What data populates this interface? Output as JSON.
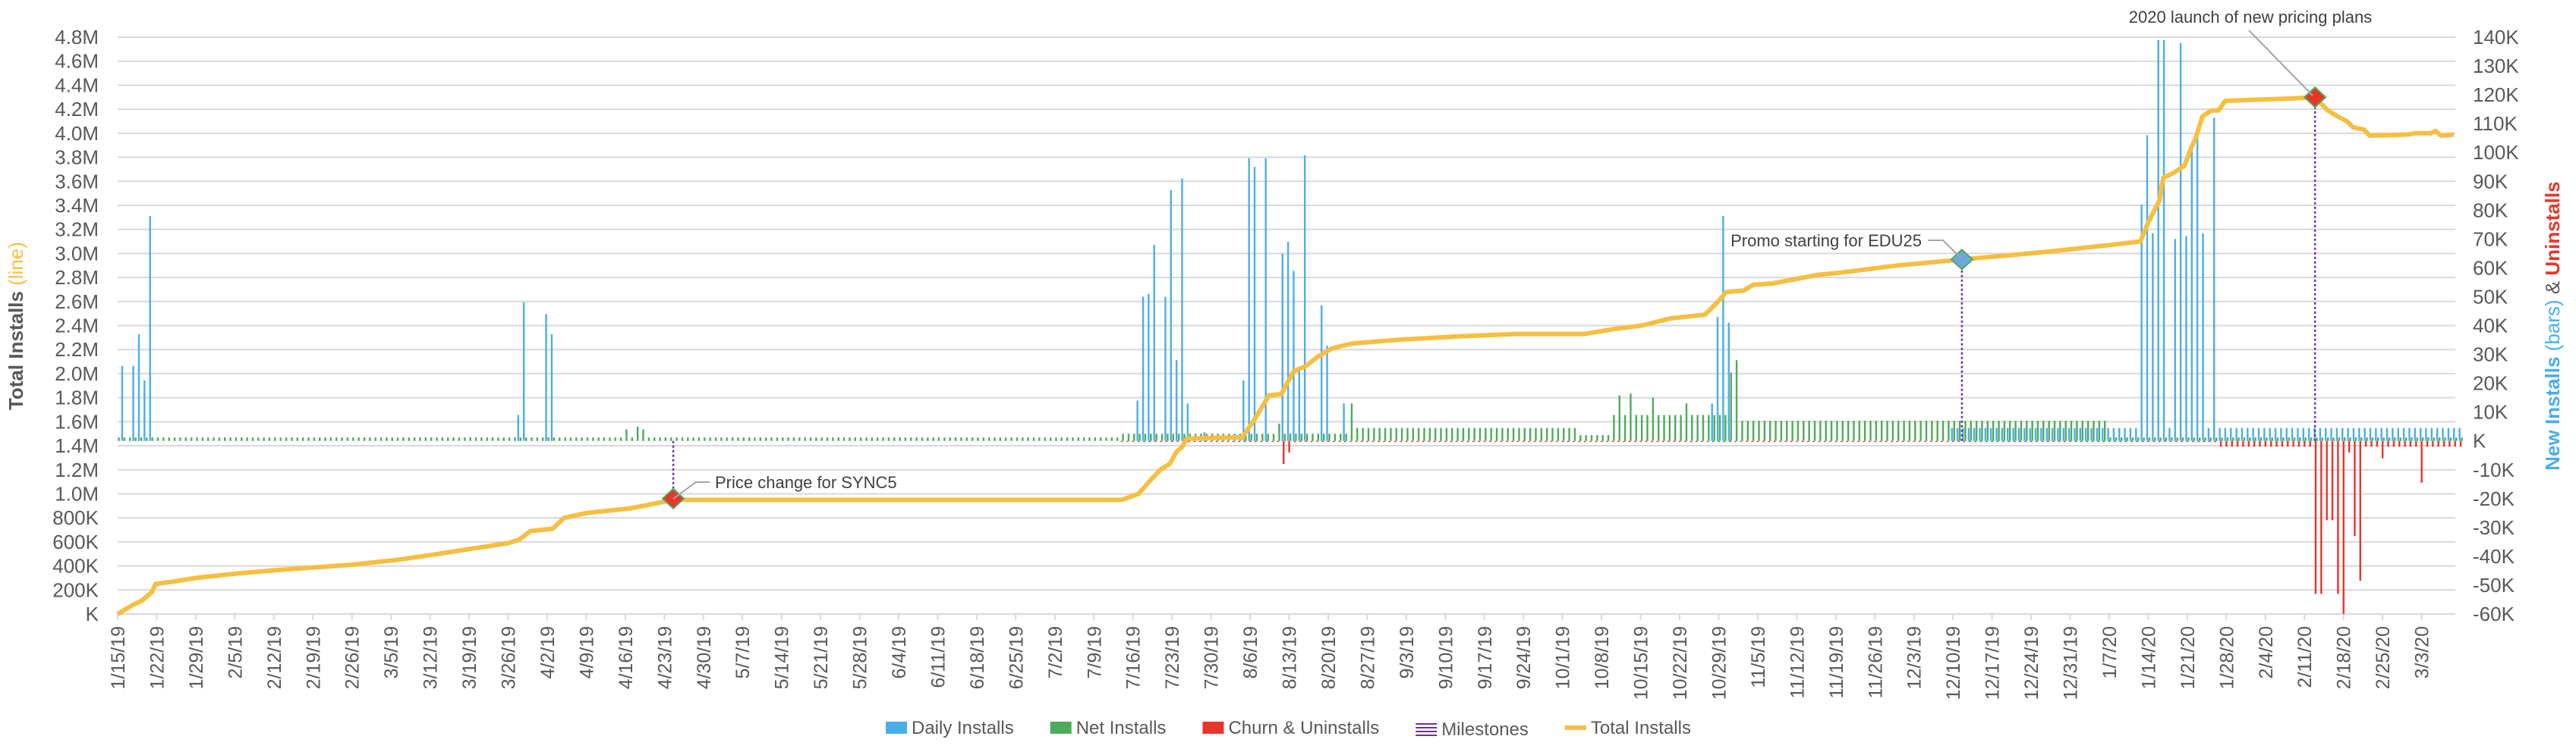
{
  "chart_data": {
    "type": "bar+line",
    "start_date": "1/15/19",
    "x_unit": "days since start_date",
    "left_axis": {
      "title": "Total Installs",
      "title_suffix": "(line)",
      "range": [
        0,
        4800000
      ],
      "ticks": [
        "K",
        "200K",
        "400K",
        "600K",
        "800K",
        "1.0M",
        "1.2M",
        "1.4M",
        "1.6M",
        "1.8M",
        "2.0M",
        "2.2M",
        "2.4M",
        "2.6M",
        "2.8M",
        "3.0M",
        "3.2M",
        "3.4M",
        "3.6M",
        "3.8M",
        "4.0M",
        "4.2M",
        "4.4M",
        "4.6M",
        "4.8M"
      ]
    },
    "right_axis": {
      "title_part1": "New Installs ",
      "title_part2": "(bars)",
      "title_part3": " & ",
      "title_part4": "Uninstalls",
      "range": [
        -60000,
        140000
      ],
      "ticks": [
        "-60K",
        "-50K",
        "-40K",
        "-30K",
        "-20K",
        "-10K",
        "K",
        "10K",
        "20K",
        "30K",
        "40K",
        "50K",
        "60K",
        "70K",
        "80K",
        "90K",
        "100K",
        "110K",
        "120K",
        "130K",
        "140K"
      ]
    },
    "x_ticks": [
      "1/15/19",
      "1/22/19",
      "1/29/19",
      "2/5/19",
      "2/12/19",
      "2/19/19",
      "2/26/19",
      "3/5/19",
      "3/12/19",
      "3/19/19",
      "3/26/19",
      "4/2/19",
      "4/9/19",
      "4/16/19",
      "4/23/19",
      "4/30/19",
      "5/7/19",
      "5/14/19",
      "5/21/19",
      "5/28/19",
      "6/4/19",
      "6/11/19",
      "6/18/19",
      "6/25/19",
      "7/2/19",
      "7/9/19",
      "7/16/19",
      "7/23/19",
      "7/30/19",
      "8/6/19",
      "8/13/19",
      "8/20/19",
      "8/27/19",
      "9/3/19",
      "9/10/19",
      "9/17/19",
      "9/24/19",
      "10/1/19",
      "10/8/19",
      "10/15/19",
      "10/22/19",
      "10/29/19",
      "11/5/19",
      "11/12/19",
      "11/19/19",
      "11/26/19",
      "12/3/19",
      "12/10/19",
      "12/17/19",
      "12/24/19",
      "12/31/19",
      "1/7/20",
      "1/14/20",
      "1/21/20",
      "1/28/20",
      "2/4/20",
      "2/11/20",
      "2/18/20",
      "2/25/20",
      "3/3/20"
    ],
    "legend": [
      {
        "label": "Daily Installs",
        "color": "#4BAEE8",
        "kind": "bar"
      },
      {
        "label": "Net Installs",
        "color": "#4EAB5B",
        "kind": "bar"
      },
      {
        "label": "Churn & Uninstalls",
        "color": "#E8352A",
        "kind": "bar"
      },
      {
        "label": "Milestones",
        "color": "#7030A0",
        "kind": "lines"
      },
      {
        "label": "Total Installs",
        "color": "#F5BF42",
        "kind": "line"
      }
    ],
    "legend_placement": "bottom",
    "grid": true,
    "total_installs_millions": [
      [
        0,
        0.0
      ],
      [
        2.5,
        0.07
      ],
      [
        4.3,
        0.11
      ],
      [
        6.1,
        0.18
      ],
      [
        6.8,
        0.25
      ],
      [
        10,
        0.27
      ],
      [
        14,
        0.3
      ],
      [
        22,
        0.34
      ],
      [
        30,
        0.37
      ],
      [
        42,
        0.41
      ],
      [
        50,
        0.45
      ],
      [
        56,
        0.49
      ],
      [
        63,
        0.54
      ],
      [
        70,
        0.59
      ],
      [
        72,
        0.62
      ],
      [
        74,
        0.69
      ],
      [
        78,
        0.71
      ],
      [
        80,
        0.8
      ],
      [
        84,
        0.84
      ],
      [
        92,
        0.88
      ],
      [
        99.6,
        0.95
      ],
      [
        180,
        0.95
      ],
      [
        183,
        1.0
      ],
      [
        184.7,
        1.09
      ],
      [
        186.9,
        1.2
      ],
      [
        188.6,
        1.25
      ],
      [
        189.8,
        1.35
      ],
      [
        190.8,
        1.39
      ],
      [
        191.7,
        1.46
      ],
      [
        201.6,
        1.47
      ],
      [
        203.8,
        1.62
      ],
      [
        206.4,
        1.82
      ],
      [
        208.6,
        1.83
      ],
      [
        210.8,
        2.02
      ],
      [
        212.9,
        2.06
      ],
      [
        215.1,
        2.14
      ],
      [
        217.7,
        2.21
      ],
      [
        221.2,
        2.25
      ],
      [
        229,
        2.28
      ],
      [
        240.3,
        2.31
      ],
      [
        250.6,
        2.33
      ],
      [
        262.9,
        2.33
      ],
      [
        268,
        2.37
      ],
      [
        273.2,
        2.4
      ],
      [
        278.4,
        2.46
      ],
      [
        284.5,
        2.49
      ],
      [
        286.7,
        2.59
      ],
      [
        288.4,
        2.68
      ],
      [
        291.4,
        2.69
      ],
      [
        293.2,
        2.74
      ],
      [
        296.6,
        2.75
      ],
      [
        304.5,
        2.82
      ],
      [
        308.8,
        2.84
      ],
      [
        319,
        2.9
      ],
      [
        330.6,
        2.95
      ],
      [
        345,
        3.01
      ],
      [
        357,
        3.07
      ],
      [
        362.6,
        3.1
      ],
      [
        363.9,
        3.25
      ],
      [
        366,
        3.44
      ],
      [
        366.7,
        3.63
      ],
      [
        368.5,
        3.67
      ],
      [
        370.5,
        3.73
      ],
      [
        371.7,
        3.88
      ],
      [
        372.5,
        3.96
      ],
      [
        373.7,
        4.14
      ],
      [
        375.3,
        4.19
      ],
      [
        376.6,
        4.19
      ],
      [
        377.8,
        4.27
      ],
      [
        384,
        4.28
      ],
      [
        389.8,
        4.29
      ],
      [
        393.9,
        4.3
      ],
      [
        396.2,
        4.19
      ],
      [
        397.6,
        4.15
      ],
      [
        399.6,
        4.1
      ],
      [
        400.7,
        4.05
      ],
      [
        402.7,
        4.03
      ],
      [
        403.7,
        3.98
      ],
      [
        410.6,
        3.99
      ],
      [
        411.8,
        4.0
      ],
      [
        414.7,
        4.0
      ],
      [
        415.5,
        4.02
      ],
      [
        416.5,
        3.98
      ],
      [
        418.8,
        3.99
      ]
    ],
    "daily_installs_k": {
      "baseline": [
        [
          329,
          420,
          4.5
        ]
      ],
      "points": [
        [
          1,
          26
        ],
        [
          3,
          26
        ],
        [
          4,
          37
        ],
        [
          5,
          21
        ],
        [
          6,
          78
        ],
        [
          72,
          9
        ],
        [
          73,
          48
        ],
        [
          77,
          44
        ],
        [
          78,
          37
        ],
        [
          183,
          14
        ],
        [
          184,
          50
        ],
        [
          185,
          51
        ],
        [
          186,
          68
        ],
        [
          188,
          50
        ],
        [
          189,
          87
        ],
        [
          190,
          28
        ],
        [
          191,
          91
        ],
        [
          192,
          13
        ],
        [
          195,
          3
        ],
        [
          202,
          21
        ],
        [
          203,
          98
        ],
        [
          204,
          95
        ],
        [
          206,
          98
        ],
        [
          209,
          65
        ],
        [
          210,
          69
        ],
        [
          211,
          59
        ],
        [
          212,
          25
        ],
        [
          213,
          99
        ],
        [
          216,
          47
        ],
        [
          217,
          33
        ],
        [
          220,
          13
        ],
        [
          286,
          13
        ],
        [
          287,
          43
        ],
        [
          288,
          78
        ],
        [
          289,
          41
        ],
        [
          363,
          82
        ],
        [
          364,
          106
        ],
        [
          365,
          72
        ],
        [
          366,
          139
        ],
        [
          367,
          139
        ],
        [
          368,
          4.5
        ],
        [
          369,
          70
        ],
        [
          370,
          138
        ],
        [
          371,
          71
        ],
        [
          372,
          103
        ],
        [
          373,
          108
        ],
        [
          374,
          72
        ],
        [
          375,
          4.5
        ],
        [
          376,
          112
        ]
      ]
    },
    "net_installs_k": {
      "baseline": [
        [
          0,
          179,
          1.2
        ],
        [
          180,
          221,
          2.5
        ],
        [
          222,
          261,
          4.5
        ],
        [
          262,
          267,
          2
        ],
        [
          268,
          289,
          9
        ],
        [
          290,
          356,
          7
        ],
        [
          357,
          420,
          1.2
        ]
      ],
      "points": [
        [
          91,
          4
        ],
        [
          93,
          5
        ],
        [
          94,
          4
        ],
        [
          208,
          6
        ],
        [
          221,
          13
        ],
        [
          269,
          15.8
        ],
        [
          271,
          16.4
        ],
        [
          275,
          15
        ],
        [
          281,
          13
        ],
        [
          289,
          23.7
        ],
        [
          290,
          28
        ]
      ]
    },
    "churn_k": {
      "baseline": [
        [
          180,
          376,
          -0.3
        ],
        [
          377,
          420,
          -2
        ]
      ],
      "points": [
        [
          209,
          -8
        ],
        [
          210,
          -4
        ],
        [
          394,
          -53
        ],
        [
          395,
          -53
        ],
        [
          396,
          -27.5
        ],
        [
          397,
          -27.5
        ],
        [
          398,
          -53
        ],
        [
          399,
          -60
        ],
        [
          400,
          -4
        ],
        [
          401,
          -33
        ],
        [
          402,
          -48.5
        ],
        [
          406,
          -6
        ],
        [
          413,
          -14.5
        ]
      ]
    },
    "milestones": [
      {
        "day": 99.6,
        "value_millions": 0.96,
        "label": "Price change for SYNC5",
        "color": "#E8352A"
      },
      {
        "day": 330.6,
        "value_millions": 2.95,
        "label": "Promo starting for EDU25",
        "color": "#6FA8DC"
      },
      {
        "day": 393.9,
        "value_millions": 4.3,
        "label": "2020 launch of new pricing plans",
        "color": "#E8352A"
      }
    ]
  }
}
